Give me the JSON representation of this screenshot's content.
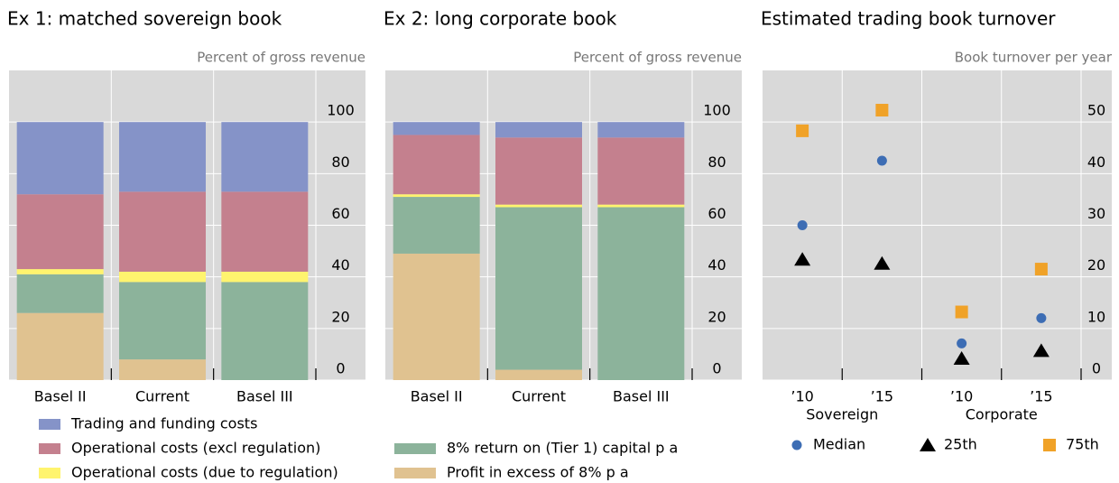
{
  "chart_data": [
    {
      "type": "stacked_bar",
      "title": "Ex 1: matched sovereign book",
      "y_label": "Percent of gross revenue",
      "categories": [
        "Basel II",
        "Current",
        "Basel III"
      ],
      "series": [
        {
          "color": "#e0c290",
          "values": [
            26,
            8,
            0
          ]
        },
        {
          "color": "#8cb39b",
          "values": [
            15,
            30,
            38
          ]
        },
        {
          "name": "Operational costs (due to regulation)",
          "color": "#fff46e",
          "values": [
            2,
            4,
            4
          ]
        },
        {
          "name": "Operational costs (excl regulation)",
          "color": "#c4808e",
          "values": [
            29,
            31,
            31
          ]
        },
        {
          "name": "Trading and funding costs",
          "color": "#8593c8",
          "values": [
            28,
            27,
            27
          ]
        }
      ],
      "ylim": [
        0,
        120
      ],
      "yticks": [
        0,
        20,
        40,
        60,
        80,
        100
      ],
      "grid": true
    },
    {
      "type": "stacked_bar",
      "title": "Ex 2: long corporate book",
      "y_label": "Percent of gross revenue",
      "categories": [
        "Basel II",
        "Current",
        "Basel III"
      ],
      "series": [
        {
          "name": "Profit in excess of 8% p a",
          "color": "#e0c290",
          "values": [
            49,
            4,
            0
          ]
        },
        {
          "name": "8% return on (Tier 1) capital p a",
          "color": "#8cb39b",
          "values": [
            22,
            63,
            67
          ]
        },
        {
          "color": "#fff46e",
          "values": [
            1,
            1,
            1
          ]
        },
        {
          "color": "#c4808e",
          "values": [
            23,
            26,
            26
          ]
        },
        {
          "color": "#8593c8",
          "values": [
            5,
            6,
            6
          ]
        }
      ],
      "ylim": [
        0,
        120
      ],
      "yticks": [
        0,
        20,
        40,
        60,
        80,
        100
      ],
      "grid": true
    },
    {
      "type": "scatter",
      "title": "Estimated trading book turnover",
      "y_label": "Book turnover per year",
      "categories": [
        "’10",
        "’15",
        "’10",
        "’15"
      ],
      "groups": [
        "Sovereign",
        "Corporate"
      ],
      "series": [
        {
          "name": "Median",
          "color": "#3d6db4",
          "marker": "circle",
          "values": [
            30,
            42.5,
            7.1,
            12
          ]
        },
        {
          "name": "25th",
          "color": "#000000",
          "marker": "triangle",
          "values": [
            23.4,
            22.6,
            4.2,
            5.7
          ]
        },
        {
          "name": "75th",
          "color": "#f0a228",
          "marker": "square",
          "values": [
            48.3,
            52.3,
            13.2,
            21.5
          ]
        }
      ],
      "ylim": [
        0,
        60
      ],
      "yticks": [
        0,
        10,
        20,
        30,
        40,
        50
      ],
      "grid": true
    }
  ]
}
